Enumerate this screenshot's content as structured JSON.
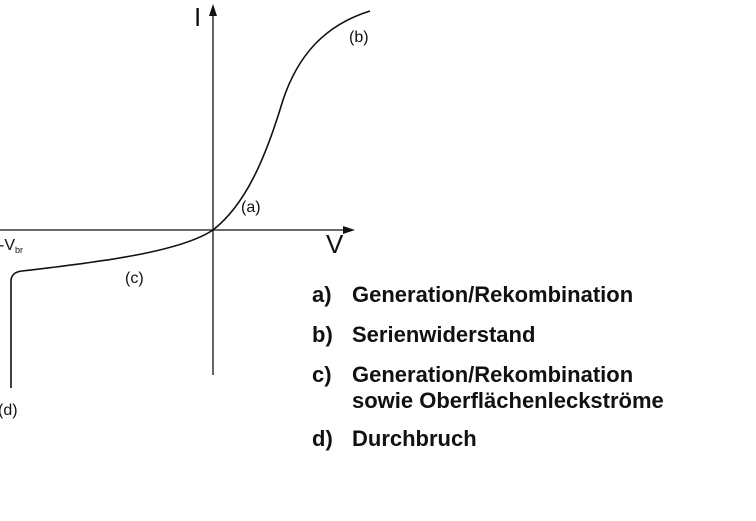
{
  "axes": {
    "y_label": "I",
    "x_label": "V",
    "breakdown_label": "-V",
    "breakdown_subscript": "br"
  },
  "curve_labels": {
    "a": "(a)",
    "b": "(b)",
    "c": "(c)",
    "d": "(d)"
  },
  "legend": [
    {
      "key": "a)",
      "text": "Generation/Rekombination"
    },
    {
      "key": "b)",
      "text": "Serienwiderstand"
    },
    {
      "key": "c)",
      "text": "Generation/Rekombination\nsowie Oberflächenleckströme"
    },
    {
      "key": "d)",
      "text": "Durchbruch"
    }
  ],
  "colors": {
    "line": "#111111",
    "background": "#ffffff"
  }
}
